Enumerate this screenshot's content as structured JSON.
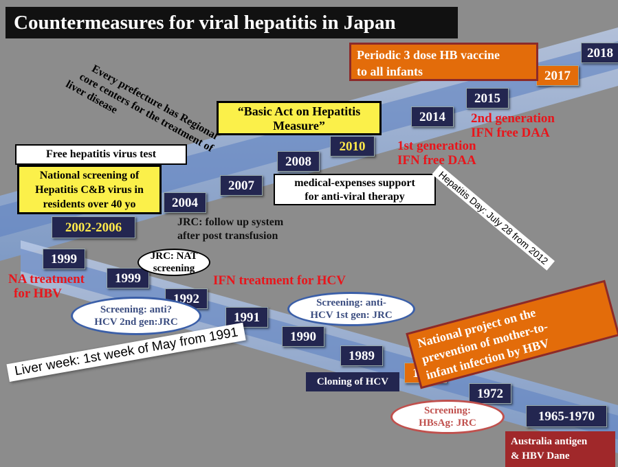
{
  "title": "Countermeasures for viral hepatitis in Japan",
  "years": [
    "2018",
    "2017",
    "2015",
    "2014",
    "2010",
    "2008",
    "2007",
    "2004",
    "2002-2006",
    "1999",
    "1999",
    "1992",
    "1991",
    "1990",
    "1989",
    "1986",
    "1972",
    "1965-1970"
  ],
  "events": [
    {
      "lines": [
        "Periodic 3 dose HB vaccine",
        "to all infants"
      ]
    },
    {
      "lines": [
        "Every prefecture has Regional",
        "core centers for the treatment of",
        "liver disease"
      ]
    },
    {
      "lines": [
        "“Basic Act on Hepatitis",
        "Measure”"
      ]
    },
    {
      "lines": [
        "2nd generation",
        "IFN free DAA"
      ]
    },
    {
      "lines": [
        "1st generation",
        "IFN free DAA"
      ]
    },
    {
      "lines": [
        "Free hepatitis virus test"
      ]
    },
    {
      "lines": [
        "National screening of",
        "Hepatitis C&B virus in",
        "residents over 40 yo"
      ]
    },
    {
      "lines": [
        "medical-expenses support",
        "for anti-viral therapy"
      ]
    },
    {
      "lines": [
        "Hepatitis Day: July 28 from 2012"
      ]
    },
    {
      "lines": [
        "JRC: follow up system",
        "after post transfusion"
      ]
    },
    {
      "lines": [
        "JRC: NAT",
        "screening"
      ]
    },
    {
      "lines": [
        "NA treatment",
        "for HBV"
      ]
    },
    {
      "lines": [
        "IFN treatment for HCV"
      ]
    },
    {
      "lines": [
        "Screening: anti?",
        "HCV 2nd gen:JRC"
      ]
    },
    {
      "lines": [
        "Screening: anti-",
        "HCV 1st gen: JRC"
      ]
    },
    {
      "lines": [
        "National project on the",
        "prevention of mother-to-",
        "infant infection by HBV"
      ]
    },
    {
      "lines": [
        "Liver week: 1st week of May from 1991"
      ]
    },
    {
      "lines": [
        "Cloning of HCV"
      ]
    },
    {
      "lines": [
        "Screening:",
        "HBsAg: JRC"
      ]
    },
    {
      "lines": [
        "Australia antigen",
        "& HBV Dane"
      ]
    }
  ]
}
